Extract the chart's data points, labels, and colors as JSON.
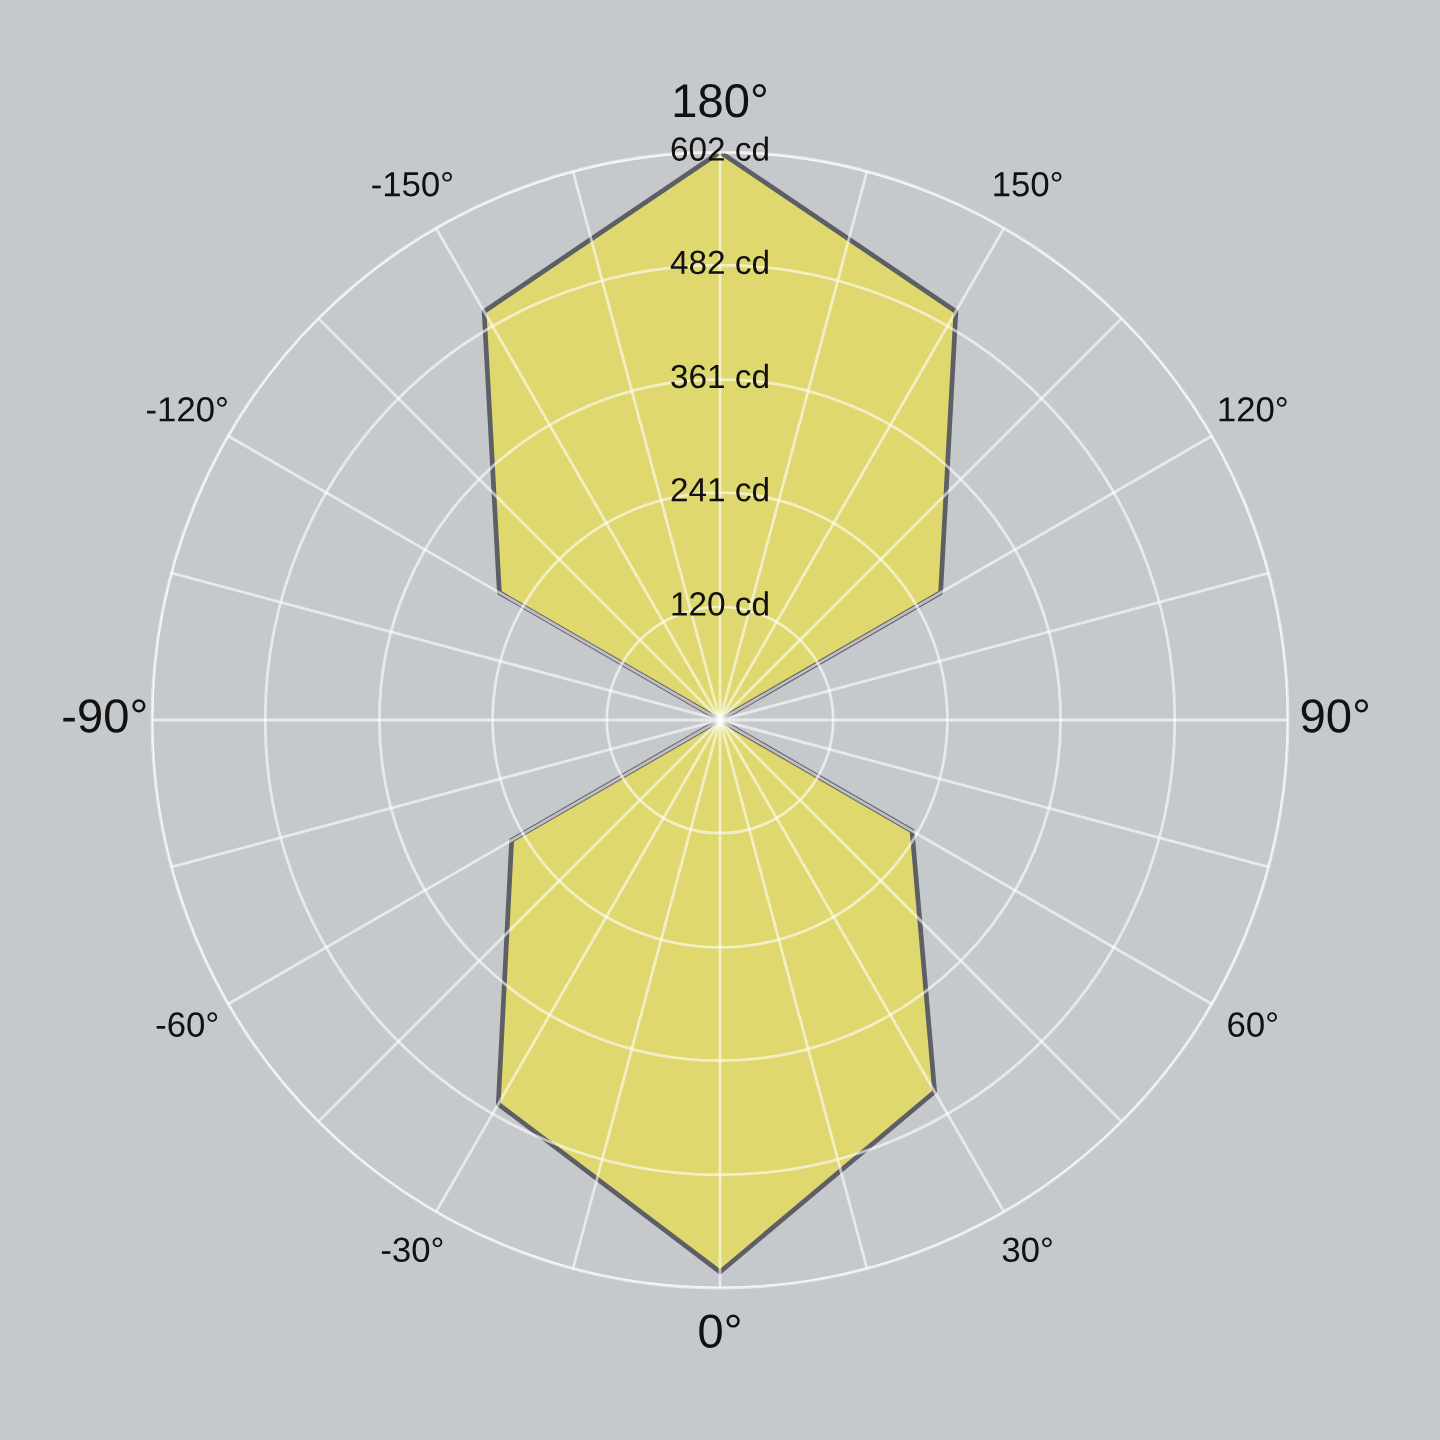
{
  "chart_data": {
    "type": "radar",
    "categories": [
      "180°",
      "150°",
      "120°",
      "90°",
      "60°",
      "30°",
      "0°",
      "-30°",
      "-60°",
      "-90°",
      "-120°",
      "-150°"
    ],
    "series": [
      {
        "color": "#dfd86e",
        "values": [
          602,
          500,
          270,
          0,
          235,
          455,
          585,
          470,
          255,
          0,
          270,
          500
        ]
      }
    ],
    "ylim": [
      0,
      602
    ],
    "yticks": [
      {
        "value": 120,
        "label": "120 cd"
      },
      {
        "value": 241,
        "label": "241 cd"
      },
      {
        "value": 361,
        "label": "361 cd"
      },
      {
        "value": 482,
        "label": "482 cd"
      },
      {
        "value": 602,
        "label": "602 cd"
      }
    ],
    "grid": true
  }
}
